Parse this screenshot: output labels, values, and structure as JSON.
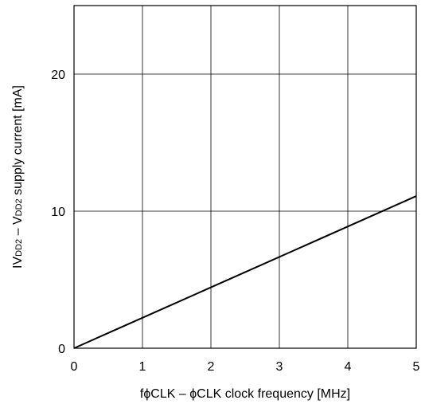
{
  "chart_data": {
    "type": "line",
    "title": "",
    "xlabel": "fϕCLK – ϕCLK clock frequency [MHz]",
    "ylabel": {
      "prefix": "IV",
      "sub1": "DD2",
      "mid": " – V",
      "sub2": "DD2",
      "suffix": " supply current [mA]"
    },
    "xlim": [
      0,
      5
    ],
    "ylim": [
      0,
      25
    ],
    "x_ticks": [
      {
        "value": 0,
        "label": "0"
      },
      {
        "value": 1,
        "label": "1"
      },
      {
        "value": 2,
        "label": "2"
      },
      {
        "value": 3,
        "label": "3"
      },
      {
        "value": 4,
        "label": "4"
      },
      {
        "value": 5,
        "label": "5"
      }
    ],
    "y_ticks": [
      {
        "value": 0,
        "label": "0"
      },
      {
        "value": 10,
        "label": "10"
      },
      {
        "value": 20,
        "label": "20"
      }
    ],
    "grid": true,
    "series": [
      {
        "x": [
          0,
          5
        ],
        "y": [
          0,
          11.1
        ]
      }
    ],
    "colors": {
      "line": "#000000",
      "grid": "#000000",
      "frame": "#000000"
    }
  }
}
